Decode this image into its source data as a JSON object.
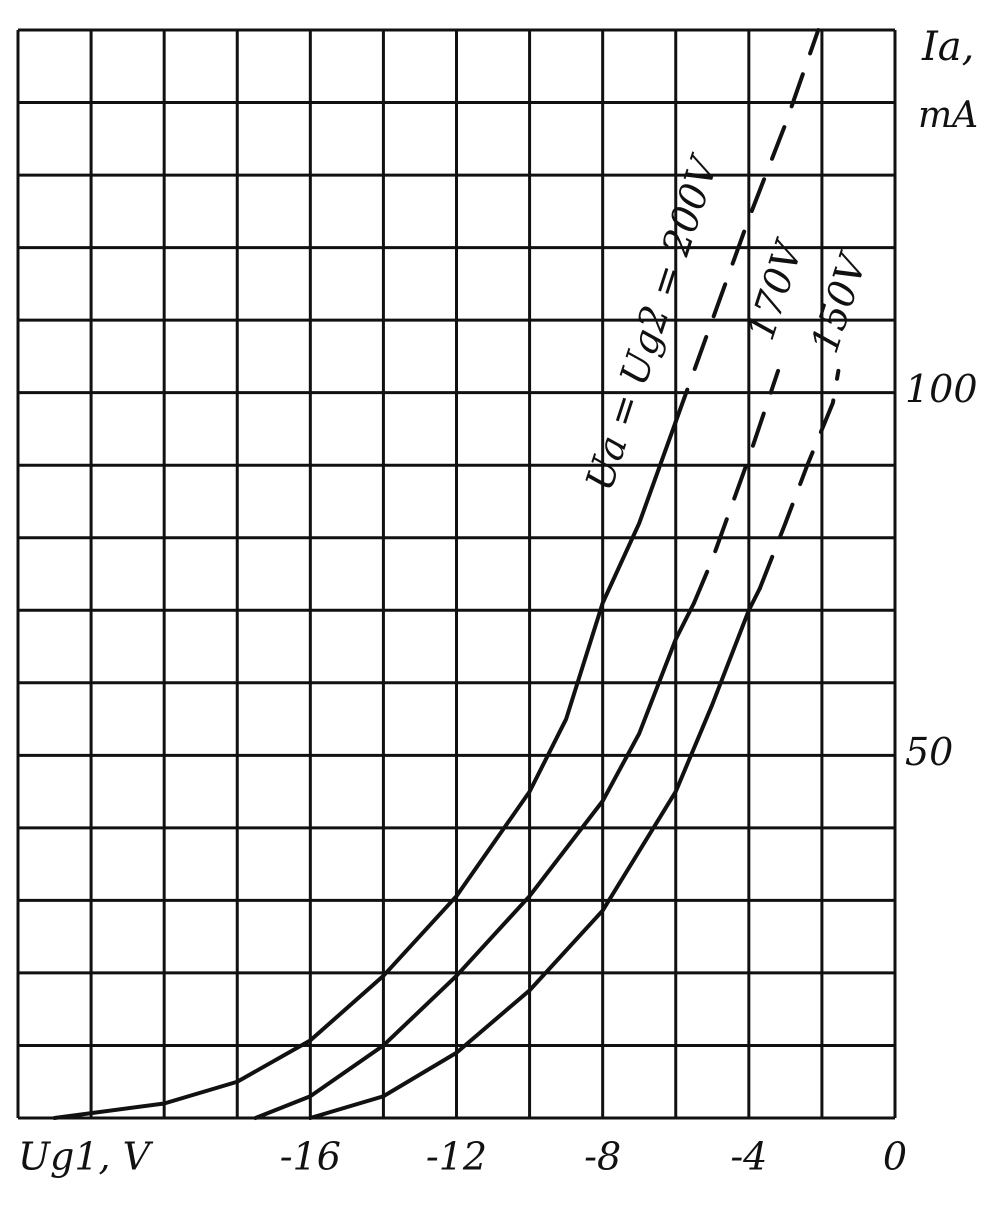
{
  "chart_data": {
    "type": "line",
    "x_label": "Ug1, V",
    "y_label_top": "Ia,",
    "y_label_unit": "mA",
    "xlim": [
      -24,
      0
    ],
    "ylim": [
      0,
      150
    ],
    "xticks": [
      -16,
      -12,
      -8,
      -4,
      0
    ],
    "yticks": [
      50,
      100
    ],
    "xgrid": [
      -24,
      -22,
      -20,
      -18,
      -16,
      -14,
      -12,
      -10,
      -8,
      -6,
      -4,
      -2,
      0
    ],
    "ygrid": [
      0,
      10,
      20,
      30,
      40,
      50,
      60,
      70,
      80,
      90,
      100,
      110,
      120,
      130,
      140,
      150
    ],
    "grid": true,
    "color": "#111111",
    "series": [
      {
        "name": "Ua = Ug2 = 200V",
        "x": [
          -23,
          -20,
          -18,
          -16,
          -14,
          -12,
          -10,
          -9,
          -8,
          -7,
          -6
        ],
        "values": [
          0,
          2,
          5,
          10.7,
          19.6,
          30.6,
          45,
          55,
          71,
          82,
          96
        ],
        "dashed_x": [
          -6,
          -5,
          -4,
          -3,
          -2.1
        ],
        "dashed_values": [
          96,
          110,
          124,
          137,
          150
        ]
      },
      {
        "name": "170V",
        "x": [
          -17.5,
          -16,
          -14,
          -12,
          -10,
          -8,
          -7,
          -6,
          -5.5
        ],
        "values": [
          0,
          3,
          10,
          19.6,
          30.6,
          43.7,
          53,
          66,
          71
        ],
        "dashed_x": [
          -5.5,
          -5,
          -4.5,
          -4,
          -3.2
        ],
        "dashed_values": [
          71,
          77,
          84,
          91,
          103
        ]
      },
      {
        "name": "150V",
        "x": [
          -16,
          -14,
          -12,
          -10,
          -8,
          -6,
          -5,
          -4,
          -3.7
        ],
        "values": [
          0,
          3,
          9,
          17.6,
          28.6,
          45,
          57,
          70,
          73
        ],
        "dashed_x": [
          -3.7,
          -3,
          -2.4,
          -1.7,
          -1.55
        ],
        "dashed_values": [
          73,
          82,
          90,
          98.6,
          103
        ]
      }
    ]
  }
}
